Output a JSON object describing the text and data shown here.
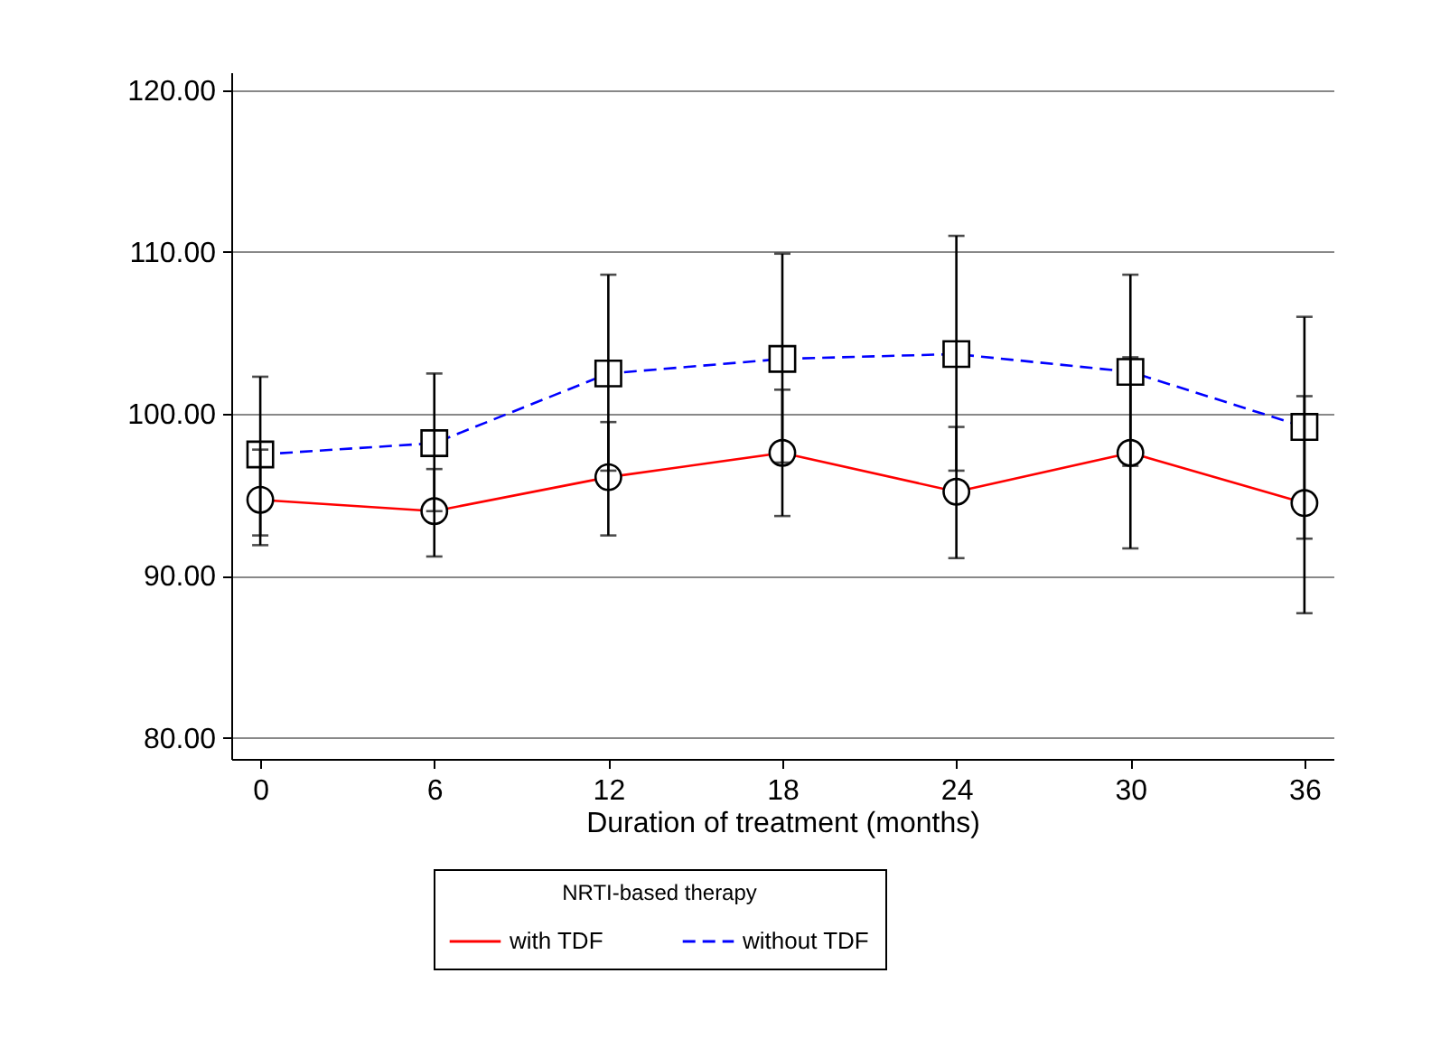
{
  "chart_data": {
    "type": "line",
    "xlabel": "Duration of treatment (months)",
    "legend_title": "NRTI-based therapy",
    "x": [
      0,
      6,
      12,
      18,
      24,
      30,
      36
    ],
    "series": [
      {
        "name": "with TDF",
        "color": "#ff0000",
        "marker": "circle",
        "line_style": "solid",
        "values": [
          94.7,
          94.0,
          96.1,
          97.6,
          95.2,
          97.6,
          94.5
        ],
        "errors": [
          [
            91.9,
            97.8
          ],
          [
            91.2,
            96.6
          ],
          [
            92.5,
            99.5
          ],
          [
            93.7,
            101.5
          ],
          [
            91.1,
            99.2
          ],
          [
            91.7,
            103.5
          ],
          [
            87.7,
            101.1
          ]
        ]
      },
      {
        "name": "without TDF",
        "color": "#0000ff",
        "marker": "square",
        "line_style": "dashed",
        "values": [
          97.5,
          98.2,
          102.5,
          103.4,
          103.7,
          102.6,
          99.2
        ],
        "errors": [
          [
            92.5,
            102.3
          ],
          [
            94.0,
            102.5
          ],
          [
            96.5,
            108.6
          ],
          [
            97.0,
            109.9
          ],
          [
            96.5,
            111.0
          ],
          [
            96.8,
            108.6
          ],
          [
            92.3,
            106.0
          ]
        ]
      }
    ],
    "xlim": [
      -1,
      37
    ],
    "xticks": [
      0,
      6,
      12,
      18,
      24,
      30,
      36
    ],
    "ylim": [
      78.7,
      121.1
    ],
    "yticks": [
      {
        "value": 80,
        "label": "80.00"
      },
      {
        "value": 90,
        "label": "90.00"
      },
      {
        "value": 100,
        "label": "100.00"
      },
      {
        "value": 110,
        "label": "110.00"
      },
      {
        "value": 120,
        "label": "120.00"
      }
    ],
    "grid": "y",
    "legend": "bottom"
  }
}
